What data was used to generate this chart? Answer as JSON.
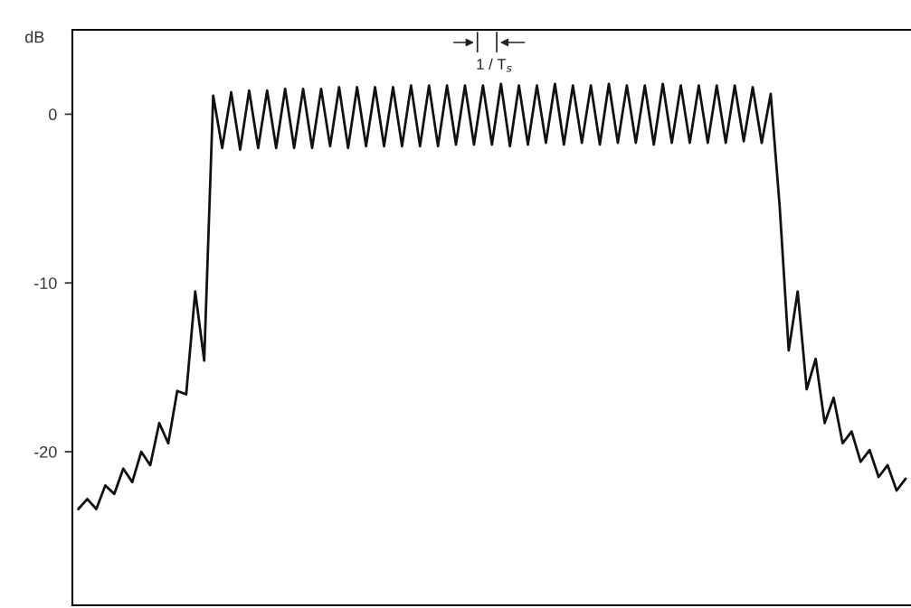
{
  "chart_data": {
    "type": "line",
    "ylabel": "dB",
    "categories": [
      null,
      null,
      null,
      null,
      null,
      null,
      null,
      null,
      null,
      null,
      null,
      null,
      null,
      null,
      null,
      null,
      null,
      null,
      null,
      null,
      null,
      null,
      null,
      null,
      null,
      null,
      null,
      null,
      null,
      null,
      null,
      null,
      null,
      null,
      null,
      null,
      null,
      null,
      null,
      null,
      null,
      null,
      null,
      null,
      null,
      null,
      null,
      null,
      null,
      null,
      null,
      null,
      null,
      null,
      null,
      null,
      null,
      null,
      null,
      null,
      null,
      null,
      null,
      null,
      null,
      null,
      null,
      null,
      null,
      null,
      null,
      null,
      null,
      null,
      null,
      null,
      null,
      null,
      null,
      null,
      null,
      null,
      null,
      null,
      null,
      null,
      null,
      null,
      null,
      null,
      null,
      null,
      null
    ],
    "series": [
      {
        "color": "#111111",
        "values": [
          -23.4,
          -22.8,
          -23.4,
          -22.0,
          -22.5,
          -21.0,
          -21.8,
          -20.0,
          -20.8,
          -18.3,
          -19.5,
          -16.4,
          -16.6,
          -10.5,
          -14.6,
          1.1,
          -2.0,
          1.3,
          -2.1,
          1.4,
          -2.0,
          1.4,
          -2.0,
          1.5,
          -2.0,
          1.5,
          -2.0,
          1.5,
          -1.9,
          1.6,
          -2.0,
          1.6,
          -1.9,
          1.6,
          -1.9,
          1.6,
          -1.9,
          1.7,
          -1.9,
          1.7,
          -1.9,
          1.7,
          -1.8,
          1.7,
          -1.8,
          1.7,
          -1.8,
          1.8,
          -1.9,
          1.7,
          -1.8,
          1.7,
          -1.7,
          1.8,
          -1.8,
          1.7,
          -1.7,
          1.7,
          -1.8,
          1.8,
          -1.7,
          1.7,
          -1.7,
          1.7,
          -1.8,
          1.8,
          -1.7,
          1.7,
          -1.7,
          1.7,
          -1.7,
          1.7,
          -1.7,
          1.7,
          -1.6,
          1.6,
          -1.7,
          1.2,
          -5.5,
          -14.0,
          -10.5,
          -16.3,
          -14.5,
          -18.3,
          -16.8,
          -19.5,
          -18.8,
          -20.6,
          -19.9,
          -21.5,
          -20.8,
          -22.3,
          -21.6
        ]
      }
    ],
    "ylim": [
      -29.1,
      5
    ],
    "yticks": [
      0,
      {
        "value": -10,
        "label": "-10"
      },
      {
        "value": -20,
        "label": "-20"
      }
    ],
    "annotations": [
      "1 / T$_{s}$"
    ],
    "tick_labels": "y",
    "grid": false,
    "marker": "none",
    "line_style": "solid"
  }
}
